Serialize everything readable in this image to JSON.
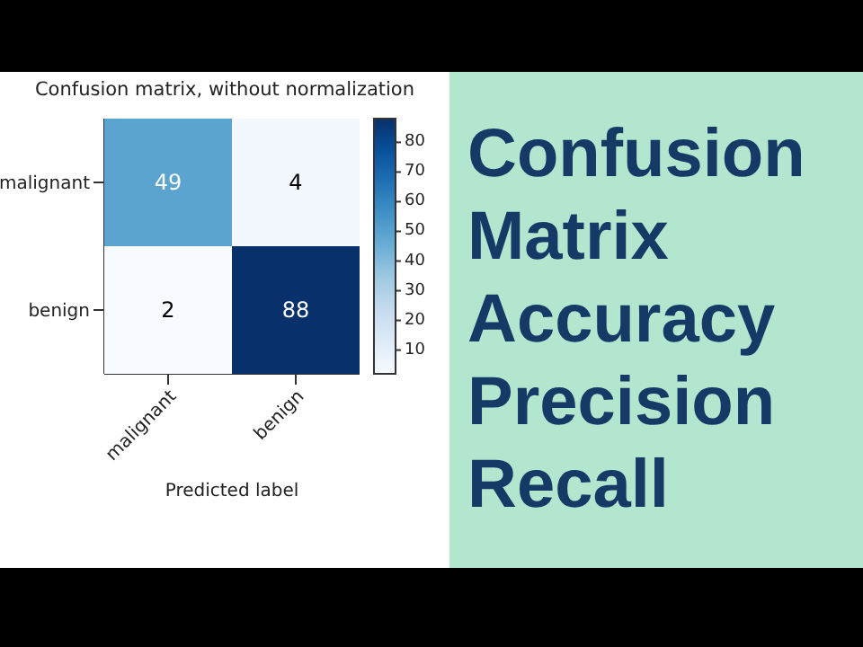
{
  "chart_data": {
    "type": "heatmap",
    "title": "Confusion matrix, without normalization",
    "xlabel": "Predicted label",
    "categories": [
      "malignant",
      "benign"
    ],
    "y_categories": [
      "malignant",
      "benign"
    ],
    "cells": [
      [
        49,
        4
      ],
      [
        2,
        88
      ]
    ],
    "data_labels": true,
    "clim": [
      2,
      88
    ],
    "cticks": [
      10,
      20,
      30,
      40,
      50,
      60,
      70,
      80
    ],
    "annotations": [
      "Confusion",
      "Matrix",
      "Accuracy",
      "Precision",
      "Recall"
    ]
  }
}
